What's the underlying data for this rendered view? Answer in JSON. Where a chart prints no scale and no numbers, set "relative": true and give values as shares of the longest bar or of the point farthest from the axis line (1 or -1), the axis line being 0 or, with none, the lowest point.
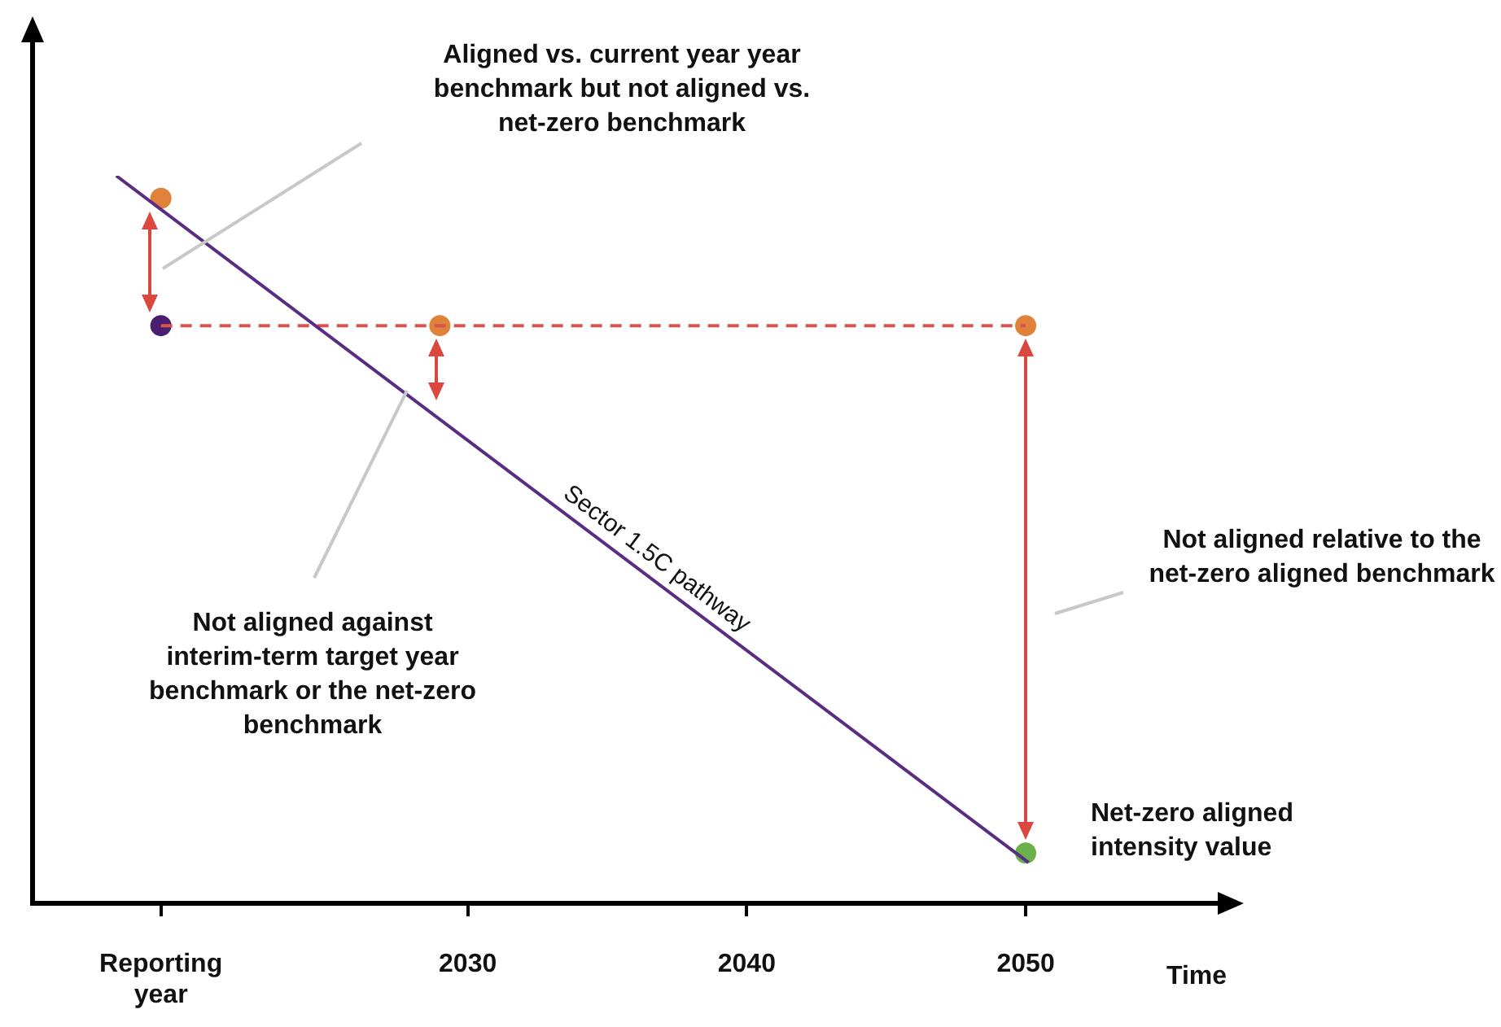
{
  "chart_data": {
    "type": "line",
    "relative": true,
    "xlabel": "Time",
    "xlim": [
      2014.4,
      2057
    ],
    "xticks": [
      {
        "value": 2019,
        "label": "Reporting year"
      },
      2030,
      2040,
      2050
    ],
    "grid": false,
    "legend": false,
    "series": [
      {
        "name": "Sector 1.5C pathway",
        "color": "#5a2d82",
        "x": [
          2017.4,
          2050.1
        ],
        "values": [
          1,
          0.056
        ]
      },
      {
        "color": "#d9534f",
        "line_style": "dashed",
        "x": [
          2019,
          2050
        ],
        "values": [
          0.794,
          0.794
        ]
      },
      {
        "type": "scatter",
        "marker": "circle",
        "colors": [
          "#e0823a",
          "#4b1f6f",
          "#e0823a",
          "#e0823a",
          "#6ab04c"
        ],
        "x": [
          2019,
          2019,
          2029,
          2050,
          2050
        ],
        "values": [
          0.969,
          0.794,
          0.794,
          0.794,
          0.069
        ]
      }
    ],
    "annotations": [
      "Aligned vs. current year year benchmark but not aligned vs. net-zero benchmark",
      "Not aligned against interim-term target year benchmark or the net-zero benchmark",
      "Not aligned relative to the net-zero aligned benchmark",
      "Net-zero aligned intensity value"
    ]
  }
}
